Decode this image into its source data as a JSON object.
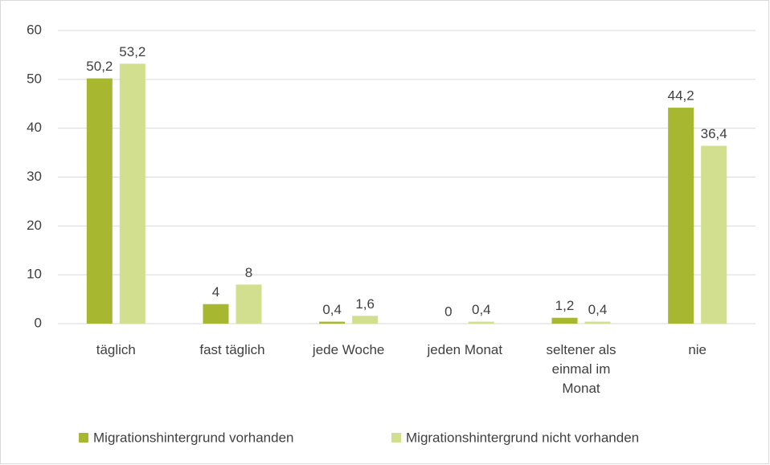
{
  "chart_data": {
    "type": "bar",
    "categories": [
      "täglich",
      "fast täglich",
      "jede Woche",
      "jeden Monat",
      "seltener als einmal im Monat",
      "nie"
    ],
    "series": [
      {
        "name": "Migrationshintergrund vorhanden",
        "color": "#a7b72f",
        "values": [
          50.2,
          4,
          0.4,
          0,
          1.2,
          44.2
        ],
        "value_labels": [
          "50,2",
          "4",
          "0,4",
          "0",
          "1,2",
          "44,2"
        ]
      },
      {
        "name": "Migrationshintergrund nicht vorhanden",
        "color": "#d2df8e",
        "values": [
          53.2,
          8,
          1.6,
          0.4,
          0.4,
          36.4
        ],
        "value_labels": [
          "53,2",
          "8",
          "1,6",
          "0,4",
          "0,4",
          "36,4"
        ]
      }
    ],
    "ylim": [
      0,
      60
    ],
    "yticks": [
      0,
      10,
      20,
      30,
      40,
      50,
      60
    ],
    "grid": true,
    "legend": "bottom"
  }
}
